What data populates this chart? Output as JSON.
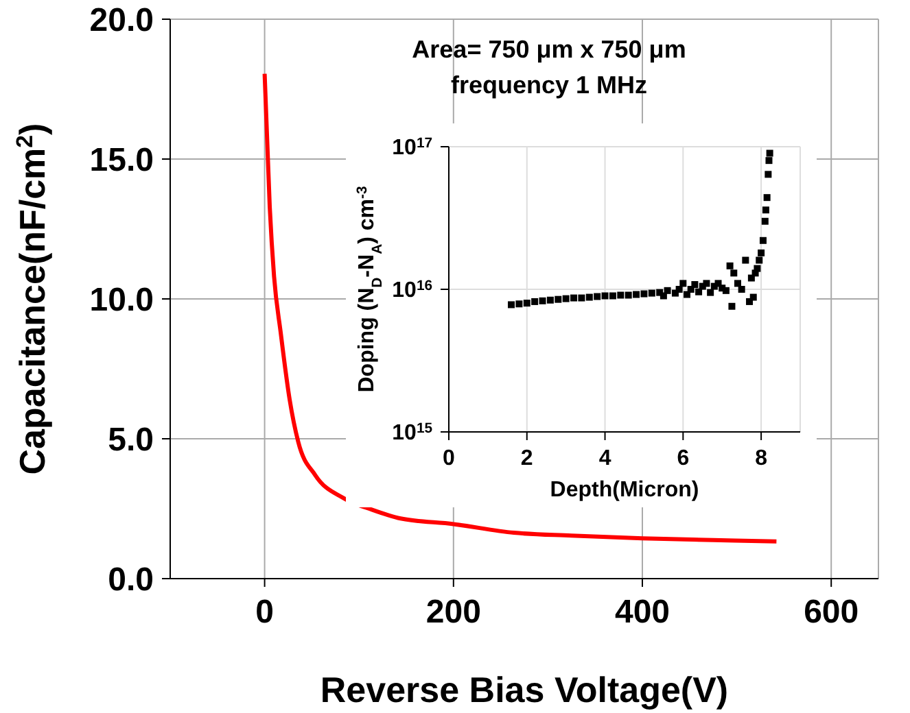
{
  "chart_data": [
    {
      "type": "line",
      "xlabel": "Reverse Bias Voltage(V)",
      "ylabel": "Capacitance(nF/cm$^{2}$)",
      "annotations": [
        "Area= 750 μm x 750 μm",
        "frequency 1 MHz"
      ],
      "x": [
        0,
        5.4,
        10,
        17,
        26.5,
        35.5,
        53.6,
        84,
        114,
        144,
        200,
        264,
        325,
        400,
        475,
        542
      ],
      "series": [
        {
          "color": "#ff0000",
          "values": [
            18.05,
            13.3,
            10.8,
            8.8,
            6.4,
            4.9,
            3.7,
            2.87,
            2.46,
            2.15,
            1.95,
            1.64,
            1.54,
            1.44,
            1.38,
            1.33
          ]
        }
      ],
      "xlim": [
        -100,
        650
      ],
      "xticks": [
        0,
        200,
        400,
        600
      ],
      "ylim": [
        0,
        20
      ],
      "yticks": [
        {
          "value": 0,
          "label": "0.0"
        },
        {
          "value": 5,
          "label": "5.0"
        },
        {
          "value": 10,
          "label": "10.0"
        },
        {
          "value": 15,
          "label": "15.0"
        },
        {
          "value": 20,
          "label": "20.0"
        }
      ],
      "grid": true,
      "marker": "none",
      "line_style": "solid"
    },
    {
      "type": "scatter",
      "xlabel": "Depth(Micron)",
      "ylabel": "Doping (N$_{D}$-N$_{A}$) cm$^{-3}$",
      "x": [
        1.6,
        1.8,
        2.0,
        2.2,
        2.4,
        2.6,
        2.8,
        3.0,
        3.2,
        3.4,
        3.6,
        3.8,
        4.0,
        4.2,
        4.4,
        4.6,
        4.8,
        5.0,
        5.2,
        5.4,
        5.5,
        5.6,
        5.8,
        5.9,
        6.0,
        6.1,
        6.2,
        6.3,
        6.4,
        6.5,
        6.6,
        6.7,
        6.8,
        6.9,
        7.0,
        7.1,
        7.2,
        7.25,
        7.3,
        7.4,
        7.5,
        7.6,
        7.7,
        7.75,
        7.8,
        7.85,
        7.9,
        7.95,
        8.0,
        8.05,
        8.1,
        8.12,
        8.15,
        8.18,
        8.2,
        8.22
      ],
      "series": [
        {
          "color": "#000000",
          "values": [
            7800000000000000.0,
            7900000000000000.0,
            8000000000000000.0,
            8200000000000000.0,
            8300000000000000.0,
            8400000000000000.0,
            8500000000000000.0,
            8600000000000000.0,
            8700000000000000.0,
            8700000000000000.0,
            8800000000000000.0,
            8900000000000000.0,
            9000000000000000.0,
            9000000000000000.0,
            9100000000000000.0,
            9100000000000000.0,
            9200000000000000.0,
            9300000000000000.0,
            9400000000000000.0,
            9500000000000000.0,
            9000000000000000.0,
            9800000000000000.0,
            9400000000000000.0,
            1e+16,
            1.1e+16,
            9200000000000000.0,
            1e+16,
            1.08e+16,
            9600000000000000.0,
            1.05e+16,
            1.1e+16,
            9500000000000000.0,
            1.05e+16,
            1.1e+16,
            1.02e+16,
            9800000000000000.0,
            1.46e+16,
            7600000000000000.0,
            1.3e+16,
            1.1e+16,
            1e+16,
            1.6e+16,
            8200000000000000.0,
            1.2e+16,
            8800000000000000.0,
            1.3e+16,
            1.4e+16,
            1.6e+16,
            1.8e+16,
            2.2e+16,
            3e+16,
            3.6e+16,
            4.4e+16,
            6.4e+16,
            8e+16,
            9e+16
          ]
        }
      ],
      "xlim": [
        0,
        9
      ],
      "xticks": [
        0,
        2,
        4,
        6,
        8
      ],
      "ylim": [
        1000000000000000.0,
        1e+17
      ],
      "yticks": [
        {
          "value": 1000000000000000.0,
          "label": "10$^{15}$"
        },
        {
          "value": 1e+16,
          "label": "10$^{16}$"
        },
        {
          "value": 1e+17,
          "label": "10$^{17}$"
        }
      ],
      "log": "y",
      "grid": true,
      "marker": "square"
    }
  ]
}
